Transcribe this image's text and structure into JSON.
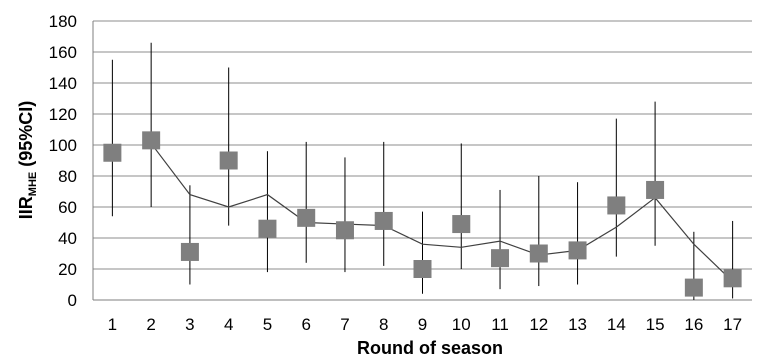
{
  "chart_data": {
    "type": "scatter",
    "title": "",
    "xlabel": "Round of season",
    "ylabel": {
      "prefix": "IIR",
      "subscript": "MHE",
      "suffix": " (95%CI)"
    },
    "ylim": [
      0,
      180
    ],
    "yticks": [
      0,
      20,
      40,
      60,
      80,
      100,
      120,
      140,
      160,
      180
    ],
    "grid": true,
    "categories": [
      "1",
      "2",
      "3",
      "4",
      "5",
      "6",
      "7",
      "8",
      "9",
      "10",
      "11",
      "12",
      "13",
      "14",
      "15",
      "16",
      "17"
    ],
    "series": [
      {
        "kind": "points_with_ci",
        "marker": "square",
        "color": "#7f7f7f",
        "values": [
          95,
          103,
          31,
          90,
          46,
          53,
          45,
          51,
          20,
          49,
          27,
          30,
          32,
          61,
          71,
          8,
          14
        ],
        "ci_low": [
          54,
          60,
          10,
          48,
          18,
          24,
          18,
          22,
          4,
          20,
          7,
          9,
          10,
          28,
          35,
          0,
          1
        ],
        "ci_high": [
          155,
          166,
          74,
          150,
          96,
          102,
          92,
          102,
          57,
          101,
          71,
          80,
          76,
          117,
          128,
          44,
          51
        ]
      },
      {
        "kind": "trend_line",
        "color": "#404040",
        "values": [
          null,
          101,
          68,
          60,
          68,
          50,
          49,
          48,
          36,
          34,
          38,
          29,
          32,
          47,
          66,
          36,
          12
        ]
      }
    ]
  },
  "colors": {
    "grid": "#8c8c8c",
    "axis": "#7f7f7f",
    "errorbar": "#000000"
  }
}
